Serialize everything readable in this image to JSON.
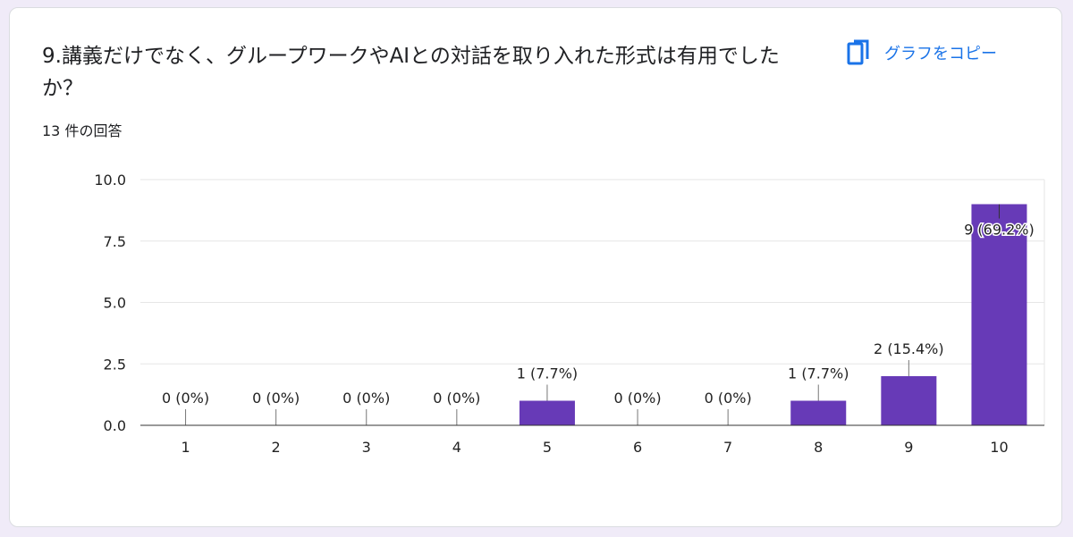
{
  "question": {
    "title": "9.講義だけでなく、グループワークやAIとの対話を取り入れた形式は有用でしたか？",
    "response_count": "13 件の回答"
  },
  "copy_button": {
    "label": "グラフをコピー",
    "icon": "copy-icon"
  },
  "colors": {
    "bar": "#673ab7",
    "accent": "#1a73e8",
    "background": "#f0ebf8"
  },
  "chart_data": {
    "type": "bar",
    "categories": [
      "1",
      "2",
      "3",
      "4",
      "5",
      "6",
      "7",
      "8",
      "9",
      "10"
    ],
    "values": [
      0,
      0,
      0,
      0,
      1,
      0,
      0,
      1,
      2,
      9
    ],
    "data_labels": [
      "0 (0%)",
      "0 (0%)",
      "0 (0%)",
      "0 (0%)",
      "1 (7.7%)",
      "0 (0%)",
      "0 (0%)",
      "1 (7.7%)",
      "2 (15.4%)",
      "9 (69.2%)"
    ],
    "yticks": [
      "0.0",
      "2.5",
      "5.0",
      "7.5",
      "10.0"
    ],
    "ylim": [
      0,
      10
    ],
    "grid": true,
    "xlabel": "",
    "ylabel": ""
  }
}
